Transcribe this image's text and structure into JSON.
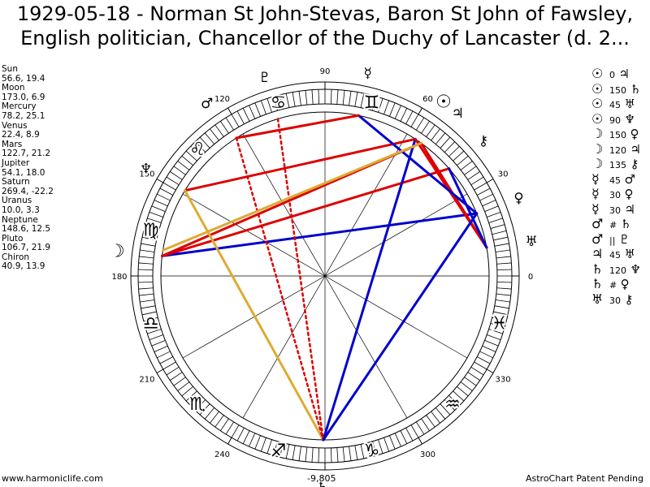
{
  "title": {
    "line1": "1929-05-18 - Norman St John-Stevas, Baron St John of Fawsley,",
    "line2": "English politician, Chancellor of the Duchy of Lancaster (d. 2..."
  },
  "positions": [
    {
      "name": "Sun",
      "values": "56.6, 19.4"
    },
    {
      "name": "Moon",
      "values": "173.0, 6.9"
    },
    {
      "name": "Mercury",
      "values": "78.2, 25.1"
    },
    {
      "name": "Venus",
      "values": "22.4, 8.9"
    },
    {
      "name": "Mars",
      "values": "122.7, 21.2"
    },
    {
      "name": "Jupiter",
      "values": "54.1, 18.0"
    },
    {
      "name": "Saturn",
      "values": "269.4, -22.2"
    },
    {
      "name": "Uranus",
      "values": "10.0, 3.3"
    },
    {
      "name": "Neptune",
      "values": "148.6, 12.5"
    },
    {
      "name": "Pluto",
      "values": "106.7, 21.9"
    },
    {
      "name": "Chiron",
      "values": "40.9, 13.9"
    }
  ],
  "aspects": [
    {
      "p1": "☉",
      "angle": "0",
      "p2": "♃",
      "p1_name": "sun",
      "p2_name": "jupiter"
    },
    {
      "p1": "☉",
      "angle": "150",
      "p2": "♄",
      "p1_name": "sun",
      "p2_name": "saturn"
    },
    {
      "p1": "☉",
      "angle": "45",
      "p2": "♅",
      "p1_name": "sun",
      "p2_name": "uranus"
    },
    {
      "p1": "☉",
      "angle": "90",
      "p2": "♆",
      "p1_name": "sun",
      "p2_name": "neptune"
    },
    {
      "p1": "☽",
      "angle": "150",
      "p2": "♀",
      "p1_name": "moon",
      "p2_name": "venus"
    },
    {
      "p1": "☽",
      "angle": "120",
      "p2": "♃",
      "p1_name": "moon",
      "p2_name": "jupiter"
    },
    {
      "p1": "☽",
      "angle": "135",
      "p2": "⚷",
      "p1_name": "moon",
      "p2_name": "chiron"
    },
    {
      "p1": "☿",
      "angle": "45",
      "p2": "♂",
      "p1_name": "mercury",
      "p2_name": "mars"
    },
    {
      "p1": "☿",
      "angle": "30",
      "p2": "♀",
      "p1_name": "mercury",
      "p2_name": "venus"
    },
    {
      "p1": "☿",
      "angle": "30",
      "p2": "♃",
      "p1_name": "mercury",
      "p2_name": "jupiter"
    },
    {
      "p1": "♂",
      "angle": "#",
      "p2": "♄",
      "p1_name": "mars",
      "p2_name": "saturn"
    },
    {
      "p1": "♂",
      "angle": "||",
      "p2": "♇",
      "p1_name": "mars",
      "p2_name": "pluto"
    },
    {
      "p1": "♃",
      "angle": "45",
      "p2": "♅",
      "p1_name": "jupiter",
      "p2_name": "uranus"
    },
    {
      "p1": "♄",
      "angle": "120",
      "p2": "♆",
      "p1_name": "saturn",
      "p2_name": "neptune"
    },
    {
      "p1": "♄",
      "angle": "#",
      "p2": "♀",
      "p1_name": "saturn",
      "p2_name": "venus"
    },
    {
      "p1": "♅",
      "angle": "30",
      "p2": "⚷",
      "p1_name": "uranus",
      "p2_name": "chiron"
    }
  ],
  "wheel": {
    "degree_labels": [
      {
        "deg": 0,
        "text": "0"
      },
      {
        "deg": 30,
        "text": "30"
      },
      {
        "deg": 60,
        "text": "60"
      },
      {
        "deg": 90,
        "text": "90"
      },
      {
        "deg": 120,
        "text": "120"
      },
      {
        "deg": 150,
        "text": "150"
      },
      {
        "deg": 180,
        "text": "180"
      },
      {
        "deg": 210,
        "text": "210"
      },
      {
        "deg": 240,
        "text": "240"
      },
      {
        "deg": 300,
        "text": "300"
      },
      {
        "deg": 330,
        "text": "330"
      }
    ],
    "zodiac_signs": [
      {
        "name": "gemini",
        "glyph": "♊",
        "deg": 75
      },
      {
        "name": "cancer",
        "glyph": "♋",
        "deg": 105
      },
      {
        "name": "leo",
        "glyph": "♌",
        "deg": 135
      },
      {
        "name": "virgo",
        "glyph": "♍",
        "deg": 165
      },
      {
        "name": "libra",
        "glyph": "♎",
        "deg": 195
      },
      {
        "name": "scorpio",
        "glyph": "♏",
        "deg": 225
      },
      {
        "name": "sagittarius",
        "glyph": "♐",
        "deg": 255
      },
      {
        "name": "capricorn",
        "glyph": "♑",
        "deg": 285
      },
      {
        "name": "aquarius",
        "glyph": "♒",
        "deg": 315
      },
      {
        "name": "pisces",
        "glyph": "♓",
        "deg": 345
      }
    ],
    "planets": [
      {
        "name": "mercury",
        "glyph": "☿",
        "deg": 78.2
      },
      {
        "name": "venus",
        "glyph": "♀",
        "deg": 22.4
      },
      {
        "name": "mars",
        "glyph": "♂",
        "deg": 122.7
      },
      {
        "name": "moon",
        "glyph": "☽",
        "deg": 173.0
      },
      {
        "name": "sun",
        "glyph": "☉",
        "deg": 56.6
      },
      {
        "name": "jupiter",
        "glyph": "♃",
        "deg": 54.1
      },
      {
        "name": "saturn",
        "glyph": "♄",
        "deg": 269.4
      },
      {
        "name": "uranus",
        "glyph": "♅",
        "deg": 10.0
      },
      {
        "name": "neptune",
        "glyph": "♆",
        "deg": 148.6
      },
      {
        "name": "pluto",
        "glyph": "♇",
        "deg": 106.7
      },
      {
        "name": "chiron",
        "glyph": "⚷",
        "deg": 40.9
      }
    ],
    "aspect_lines": [
      {
        "from": 173.0,
        "to": 22.4,
        "color": "#0000cc",
        "style": "solid"
      },
      {
        "from": 173.0,
        "to": 54.1,
        "color": "#dd0000",
        "style": "solid"
      },
      {
        "from": 173.0,
        "to": 40.9,
        "color": "#dd0000",
        "style": "solid"
      },
      {
        "from": 148.6,
        "to": 56.6,
        "color": "#dd0000",
        "style": "solid"
      },
      {
        "from": 148.6,
        "to": 269.4,
        "color": "#ddaa33",
        "style": "solid"
      },
      {
        "from": 56.6,
        "to": 269.4,
        "color": "#0000cc",
        "style": "solid"
      },
      {
        "from": 56.6,
        "to": 10.0,
        "color": "#dd0000",
        "style": "solid"
      },
      {
        "from": 54.1,
        "to": 10.0,
        "color": "#dd0000",
        "style": "solid"
      },
      {
        "from": 40.9,
        "to": 10.0,
        "color": "#0000cc",
        "style": "solid"
      },
      {
        "from": 78.2,
        "to": 22.4,
        "color": "#0000cc",
        "style": "solid"
      },
      {
        "from": 78.2,
        "to": 122.7,
        "color": "#dd0000",
        "style": "solid"
      },
      {
        "from": 122.7,
        "to": 269.4,
        "color": "#dd0000",
        "style": "dotted"
      },
      {
        "from": 106.7,
        "to": 269.4,
        "color": "#dd0000",
        "style": "dotted"
      },
      {
        "from": 54.1,
        "to": 171.0,
        "color": "#ddaa33",
        "style": "solid"
      },
      {
        "from": 269.4,
        "to": 22.4,
        "color": "#0000cc",
        "style": "solid"
      }
    ]
  },
  "bottom_value": "-9,805",
  "footer": {
    "left": "www.harmoniclife.com",
    "right": "AstroChart Patent Pending"
  },
  "colors": {
    "aspect_red": "#dd0000",
    "aspect_blue": "#0000cc",
    "aspect_gold": "#ddaa33"
  }
}
